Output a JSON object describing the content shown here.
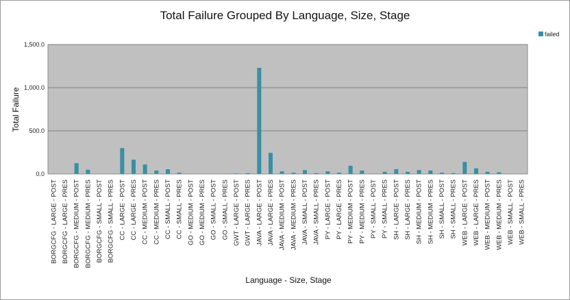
{
  "chart_data": {
    "type": "bar",
    "title": "Total Failure Grouped By Language, Size, Stage",
    "xlabel": "Language - Size, Stage",
    "ylabel": "Total Failure",
    "ylim": [
      0,
      1500
    ],
    "yticks": [
      "0.0",
      "500.0",
      "1,000.0",
      "1,500.0"
    ],
    "ytick_values": [
      0,
      500,
      1000,
      1500
    ],
    "grid": true,
    "legend_position": "top-right",
    "colors": {
      "bar": "#3a8fa3",
      "plot_bg": "#c0c0c0",
      "grid": "#808080"
    },
    "categories": [
      "BORGCFG - LARGE - POST",
      "BORGCFG - LARGE - PRES",
      "BORGCFG - MEDIUM - POST",
      "BORGCFG - MEDIUM - PRES",
      "BORGCFG - SMALL - POST",
      "BORGCFG - SMALL - PRES",
      "CC - LARGE - POST",
      "CC - LARGE - PRES",
      "CC - MEDIUM - POST",
      "CC - MEDIUM - PRES",
      "CC - SMALL - POST",
      "CC - SMALL - PRES",
      "GO - MEDIUM - POST",
      "GO - MEDIUM - PRES",
      "GO - SMALL - POST",
      "GO - SMALL - PRES",
      "GWT - LARGE - POST",
      "GWT - LARGE - PRES",
      "JAVA - LARGE - POST",
      "JAVA - LARGE - PRES",
      "JAVA - MEDIUM - POST",
      "JAVA - MEDIUM - PRES",
      "JAVA - SMALL - POST",
      "JAVA - SMALL - PRES",
      "PY - LARGE - POST",
      "PY - LARGE - PRES",
      "PY - MEDIUM - POST",
      "PY - MEDIUM - PRES",
      "PY - SMALL - POST",
      "PY - SMALL - PRES",
      "SH - LARGE - POST",
      "SH - LARGE - PRES",
      "SH - MEDIUM - POST",
      "SH - MEDIUM - PRES",
      "SH - SMALL - POST",
      "SH - SMALL - PRES",
      "WEB - LARGE - POST",
      "WEB - LARGE - PRES",
      "WEB - MEDIUM - POST",
      "WEB - MEDIUM - PRES",
      "WEB - SMALL - POST",
      "WEB - SMALL - PRES"
    ],
    "series": [
      {
        "name": "failed",
        "values": [
          0,
          0,
          125,
          50,
          0,
          0,
          300,
          165,
          110,
          40,
          55,
          15,
          0,
          0,
          0,
          0,
          5,
          10,
          1230,
          245,
          30,
          15,
          45,
          10,
          30,
          15,
          95,
          40,
          0,
          25,
          55,
          25,
          45,
          40,
          15,
          10,
          140,
          65,
          25,
          20,
          0,
          0
        ]
      }
    ]
  }
}
